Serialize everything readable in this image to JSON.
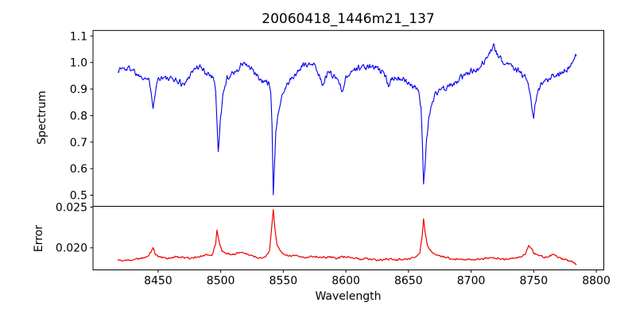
{
  "figure": {
    "title": "20060418_1446m21_137",
    "background": "#ffffff"
  },
  "chart_data": [
    {
      "type": "line",
      "panel": "top",
      "title": "20060418_1446m21_137",
      "xlabel": "",
      "ylabel": "Spectrum",
      "series_name": "spectrum",
      "color": "#0000ee",
      "line_width": 1.1,
      "grid": false,
      "legend": null,
      "xlim": [
        8398,
        8806
      ],
      "ylim": [
        0.458,
        1.121
      ],
      "yticks": [
        0.5,
        0.6,
        0.7,
        0.8,
        0.9,
        1.0,
        1.1
      ],
      "ytick_labels": [
        "0.5",
        "0.6",
        "0.7",
        "0.8",
        "0.9",
        "1.0",
        "1.1"
      ],
      "xticks": [],
      "xtick_labels": [],
      "x_data_range": [
        8418,
        8784
      ],
      "sample_step": 0.5,
      "noise_amp": 0.011,
      "noise_seed": 1337,
      "keypoints": [
        [
          8418,
          0.97
        ],
        [
          8421,
          0.98
        ],
        [
          8424,
          0.975
        ],
        [
          8427,
          0.98
        ],
        [
          8430,
          0.975
        ],
        [
          8433,
          0.955
        ],
        [
          8436,
          0.95
        ],
        [
          8439,
          0.945
        ],
        [
          8442,
          0.935
        ],
        [
          8444,
          0.91
        ],
        [
          8446,
          0.835
        ],
        [
          8448,
          0.9
        ],
        [
          8450,
          0.94
        ],
        [
          8453,
          0.945
        ],
        [
          8456,
          0.94
        ],
        [
          8459,
          0.935
        ],
        [
          8462,
          0.94
        ],
        [
          8465,
          0.93
        ],
        [
          8468,
          0.925
        ],
        [
          8471,
          0.915
        ],
        [
          8474,
          0.945
        ],
        [
          8477,
          0.965
        ],
        [
          8480,
          0.98
        ],
        [
          8483,
          0.985
        ],
        [
          8486,
          0.97
        ],
        [
          8489,
          0.96
        ],
        [
          8492,
          0.955
        ],
        [
          8494,
          0.945
        ],
        [
          8496,
          0.9
        ],
        [
          8497,
          0.78
        ],
        [
          8498,
          0.66
        ],
        [
          8499,
          0.72
        ],
        [
          8500,
          0.8
        ],
        [
          8502,
          0.88
        ],
        [
          8505,
          0.94
        ],
        [
          8508,
          0.955
        ],
        [
          8511,
          0.965
        ],
        [
          8514,
          0.975
        ],
        [
          8517,
          0.995
        ],
        [
          8520,
          0.995
        ],
        [
          8523,
          0.98
        ],
        [
          8526,
          0.965
        ],
        [
          8529,
          0.95
        ],
        [
          8532,
          0.93
        ],
        [
          8534,
          0.925
        ],
        [
          8536,
          0.93
        ],
        [
          8538,
          0.925
        ],
        [
          8540,
          0.88
        ],
        [
          8541,
          0.76
        ],
        [
          8542,
          0.51
        ],
        [
          8543,
          0.62
        ],
        [
          8544,
          0.73
        ],
        [
          8546,
          0.81
        ],
        [
          8548,
          0.865
        ],
        [
          8551,
          0.9
        ],
        [
          8554,
          0.925
        ],
        [
          8557,
          0.94
        ],
        [
          8560,
          0.955
        ],
        [
          8563,
          0.975
        ],
        [
          8566,
          0.99
        ],
        [
          8569,
          0.995
        ],
        [
          8572,
          1.0
        ],
        [
          8575,
          0.985
        ],
        [
          8578,
          0.96
        ],
        [
          8581,
          0.92
        ],
        [
          8583,
          0.935
        ],
        [
          8585,
          0.955
        ],
        [
          8587,
          0.965
        ],
        [
          8590,
          0.95
        ],
        [
          8594,
          0.935
        ],
        [
          8597,
          0.89
        ],
        [
          8599,
          0.93
        ],
        [
          8602,
          0.955
        ],
        [
          8605,
          0.97
        ],
        [
          8608,
          0.975
        ],
        [
          8611,
          0.98
        ],
        [
          8614,
          0.985
        ],
        [
          8617,
          0.98
        ],
        [
          8620,
          0.985
        ],
        [
          8623,
          0.98
        ],
        [
          8626,
          0.975
        ],
        [
          8629,
          0.96
        ],
        [
          8632,
          0.945
        ],
        [
          8634,
          0.915
        ],
        [
          8636,
          0.94
        ],
        [
          8639,
          0.945
        ],
        [
          8642,
          0.94
        ],
        [
          8645,
          0.935
        ],
        [
          8648,
          0.925
        ],
        [
          8651,
          0.92
        ],
        [
          8654,
          0.915
        ],
        [
          8656,
          0.905
        ],
        [
          8658,
          0.885
        ],
        [
          8660,
          0.83
        ],
        [
          8661,
          0.72
        ],
        [
          8662,
          0.545
        ],
        [
          8663,
          0.6
        ],
        [
          8664,
          0.68
        ],
        [
          8666,
          0.78
        ],
        [
          8668,
          0.835
        ],
        [
          8671,
          0.875
        ],
        [
          8674,
          0.895
        ],
        [
          8677,
          0.905
        ],
        [
          8680,
          0.895
        ],
        [
          8683,
          0.915
        ],
        [
          8686,
          0.92
        ],
        [
          8689,
          0.925
        ],
        [
          8692,
          0.945
        ],
        [
          8695,
          0.955
        ],
        [
          8698,
          0.96
        ],
        [
          8701,
          0.97
        ],
        [
          8704,
          0.975
        ],
        [
          8707,
          0.985
        ],
        [
          8710,
          1.0
        ],
        [
          8713,
          1.02
        ],
        [
          8716,
          1.05
        ],
        [
          8718,
          1.06
        ],
        [
          8720,
          1.04
        ],
        [
          8722,
          1.02
        ],
        [
          8725,
          1.005
        ],
        [
          8728,
          1.0
        ],
        [
          8731,
          0.995
        ],
        [
          8734,
          0.985
        ],
        [
          8737,
          0.975
        ],
        [
          8740,
          0.96
        ],
        [
          8743,
          0.945
        ],
        [
          8746,
          0.91
        ],
        [
          8748,
          0.845
        ],
        [
          8750,
          0.78
        ],
        [
          8751,
          0.83
        ],
        [
          8753,
          0.885
        ],
        [
          8756,
          0.915
        ],
        [
          8759,
          0.93
        ],
        [
          8762,
          0.94
        ],
        [
          8765,
          0.95
        ],
        [
          8768,
          0.955
        ],
        [
          8771,
          0.96
        ],
        [
          8774,
          0.965
        ],
        [
          8777,
          0.975
        ],
        [
          8780,
          0.99
        ],
        [
          8782,
          1.005
        ],
        [
          8784,
          1.025
        ]
      ]
    },
    {
      "type": "line",
      "panel": "bottom",
      "title": "",
      "xlabel": "Wavelength",
      "ylabel": "Error",
      "series_name": "error",
      "color": "#ee0000",
      "line_width": 1.2,
      "grid": false,
      "legend": null,
      "xlim": [
        8398,
        8806
      ],
      "ylim": [
        0.01729,
        0.0251
      ],
      "yticks": [
        0.02,
        0.025
      ],
      "ytick_labels": [
        "0.020",
        "0.025"
      ],
      "xticks": [
        8450,
        8500,
        8550,
        8600,
        8650,
        8700,
        8750,
        8800
      ],
      "xtick_labels": [
        "8450",
        "8500",
        "8550",
        "8600",
        "8650",
        "8700",
        "8750",
        "8800"
      ],
      "x_data_range": [
        8418,
        8784
      ],
      "sample_step": 0.5,
      "noise_amp": 0.00011,
      "noise_seed": 4242,
      "keypoints": [
        [
          8418,
          0.0185
        ],
        [
          8424,
          0.0184
        ],
        [
          8430,
          0.0186
        ],
        [
          8436,
          0.0187
        ],
        [
          8442,
          0.0189
        ],
        [
          8445,
          0.0197
        ],
        [
          8446,
          0.02
        ],
        [
          8448,
          0.0191
        ],
        [
          8452,
          0.0188
        ],
        [
          8458,
          0.0187
        ],
        [
          8464,
          0.0189
        ],
        [
          8470,
          0.0188
        ],
        [
          8476,
          0.0187
        ],
        [
          8482,
          0.0189
        ],
        [
          8488,
          0.0192
        ],
        [
          8493,
          0.0191
        ],
        [
          8496,
          0.0205
        ],
        [
          8497,
          0.0222
        ],
        [
          8499,
          0.0206
        ],
        [
          8501,
          0.0196
        ],
        [
          8505,
          0.0193
        ],
        [
          8510,
          0.0192
        ],
        [
          8515,
          0.0194
        ],
        [
          8520,
          0.0193
        ],
        [
          8525,
          0.019
        ],
        [
          8530,
          0.0188
        ],
        [
          8535,
          0.0188
        ],
        [
          8539,
          0.0196
        ],
        [
          8541,
          0.023
        ],
        [
          8542,
          0.0247
        ],
        [
          8543,
          0.0228
        ],
        [
          8545,
          0.0203
        ],
        [
          8548,
          0.0195
        ],
        [
          8552,
          0.0191
        ],
        [
          8556,
          0.019
        ],
        [
          8560,
          0.0191
        ],
        [
          8564,
          0.0189
        ],
        [
          8568,
          0.0188
        ],
        [
          8572,
          0.019
        ],
        [
          8576,
          0.0189
        ],
        [
          8580,
          0.0189
        ],
        [
          8584,
          0.0188
        ],
        [
          8588,
          0.0189
        ],
        [
          8592,
          0.0187
        ],
        [
          8596,
          0.0189
        ],
        [
          8600,
          0.0189
        ],
        [
          8604,
          0.0188
        ],
        [
          8608,
          0.0187
        ],
        [
          8612,
          0.0186
        ],
        [
          8616,
          0.0187
        ],
        [
          8620,
          0.0186
        ],
        [
          8624,
          0.0185
        ],
        [
          8628,
          0.0185
        ],
        [
          8632,
          0.0186
        ],
        [
          8636,
          0.0186
        ],
        [
          8640,
          0.0185
        ],
        [
          8644,
          0.0186
        ],
        [
          8648,
          0.0186
        ],
        [
          8652,
          0.0187
        ],
        [
          8656,
          0.0189
        ],
        [
          8659,
          0.0194
        ],
        [
          8661,
          0.0215
        ],
        [
          8662,
          0.0236
        ],
        [
          8663,
          0.0222
        ],
        [
          8665,
          0.0203
        ],
        [
          8668,
          0.0195
        ],
        [
          8672,
          0.0192
        ],
        [
          8676,
          0.019
        ],
        [
          8680,
          0.0188
        ],
        [
          8684,
          0.0187
        ],
        [
          8688,
          0.0186
        ],
        [
          8692,
          0.0186
        ],
        [
          8696,
          0.0185
        ],
        [
          8700,
          0.0186
        ],
        [
          8704,
          0.0186
        ],
        [
          8708,
          0.0186
        ],
        [
          8712,
          0.0187
        ],
        [
          8716,
          0.0188
        ],
        [
          8720,
          0.0187
        ],
        [
          8724,
          0.0186
        ],
        [
          8728,
          0.0186
        ],
        [
          8732,
          0.0187
        ],
        [
          8736,
          0.0188
        ],
        [
          8740,
          0.0189
        ],
        [
          8743,
          0.0192
        ],
        [
          8746,
          0.0202
        ],
        [
          8748,
          0.02
        ],
        [
          8750,
          0.0194
        ],
        [
          8753,
          0.0191
        ],
        [
          8756,
          0.019
        ],
        [
          8760,
          0.0188
        ],
        [
          8763,
          0.019
        ],
        [
          8766,
          0.0192
        ],
        [
          8769,
          0.0189
        ],
        [
          8772,
          0.0187
        ],
        [
          8775,
          0.0186
        ],
        [
          8778,
          0.0184
        ],
        [
          8781,
          0.0183
        ],
        [
          8784,
          0.018
        ]
      ]
    }
  ]
}
